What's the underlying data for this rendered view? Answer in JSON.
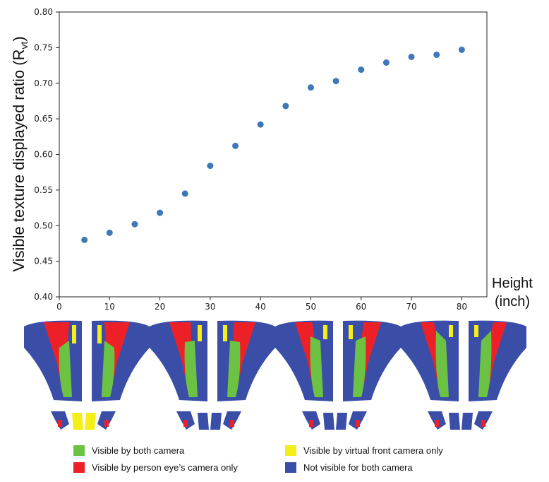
{
  "chart_data": {
    "type": "scatter",
    "title": "",
    "xlabel_line1": "Height",
    "xlabel_line2": "(inch)",
    "ylabel_main": "Visible texture displayed ratio (R",
    "ylabel_sub": "vt",
    "ylabel_close": ")",
    "xlim": [
      0,
      85
    ],
    "ylim": [
      0.4,
      0.8
    ],
    "xticks": [
      0,
      10,
      20,
      30,
      40,
      50,
      60,
      70,
      80
    ],
    "yticks": [
      "0.40",
      "0.45",
      "0.50",
      "0.55",
      "0.60",
      "0.65",
      "0.70",
      "0.75",
      "0.80"
    ],
    "grid": false,
    "series": [
      {
        "x": [
          5,
          10,
          15,
          20,
          25,
          30,
          35,
          40,
          45,
          50,
          55,
          60,
          65,
          70,
          75,
          80
        ],
        "y": [
          0.48,
          0.49,
          0.502,
          0.518,
          0.545,
          0.584,
          0.612,
          0.642,
          0.668,
          0.694,
          0.703,
          0.719,
          0.729,
          0.737,
          0.74,
          0.747
        ]
      }
    ],
    "marker_color": "#3f78b8"
  },
  "legend": [
    {
      "label": "Visible by both  camera",
      "color": "#6cc242"
    },
    {
      "label": "Visible by person eye’s camera only",
      "color": "#ee2027"
    },
    {
      "label": "Visible by virtual front camera only",
      "color": "#f4ef18"
    },
    {
      "label": "Not visible for both  camera",
      "color": "#3a4ea8"
    }
  ]
}
